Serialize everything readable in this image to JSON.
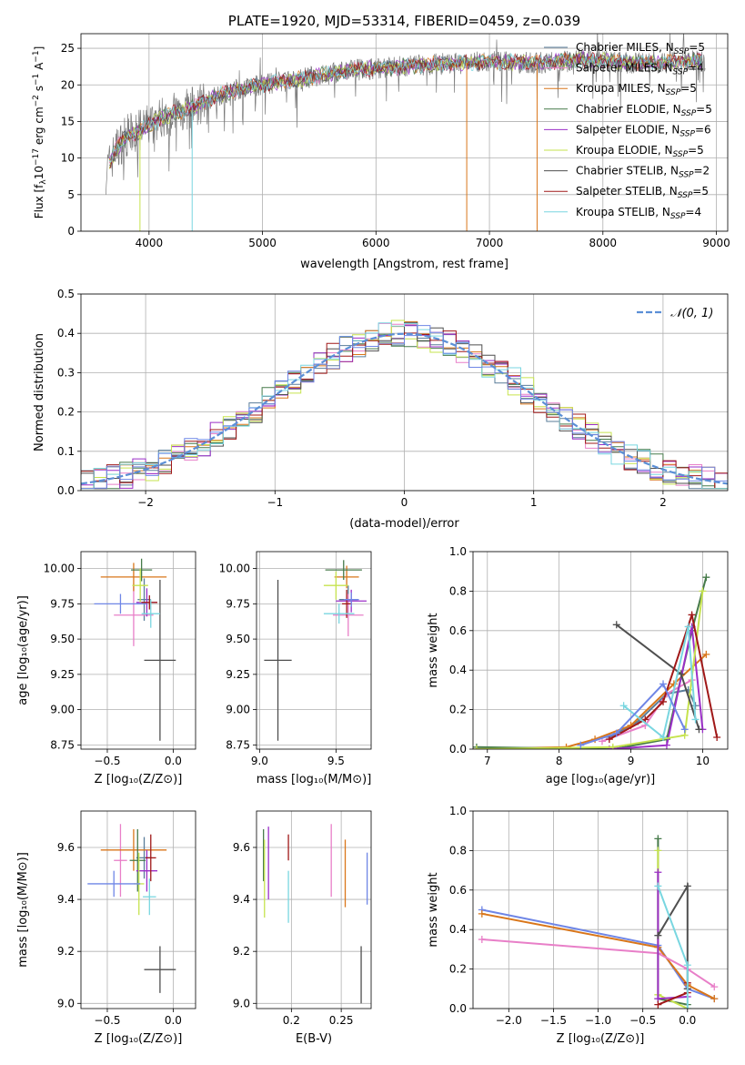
{
  "colors": {
    "Chabrier MILES": "#5a7d9a",
    "Salpeter MILES": "#e87fc8",
    "Kroupa MILES": "#d9761a",
    "Chabrier ELODIE": "#467a4a",
    "Salpeter ELODIE": "#9b2fc8",
    "Kroupa ELODIE": "#c6e34e",
    "Chabrier STELIB": "#4f4f4f",
    "Salpeter STELIB": "#a01818",
    "Kroupa STELIB": "#79d6e0",
    "Stelib spread": "#6f86e6",
    "gaussian": "#5b8fd6",
    "spectrum": "#7a7a7a"
  },
  "chart_data": [
    {
      "id": "spectrum",
      "type": "line",
      "title": "PLATE=1920, MJD=53314, FIBERID=0459, z=0.039",
      "xlabel": "wavelength [Angstrom, rest frame]",
      "ylabel_main": "Flux [f",
      "ylabel_sub": "λ",
      "ylabel_rest": "10",
      "ylabel_tail": "−17 erg cm−2 s−1 A−1]",
      "xlim": [
        3400,
        9100
      ],
      "ylim": [
        0,
        27
      ],
      "xticks": [
        4000,
        5000,
        6000,
        7000,
        8000,
        9000
      ],
      "yticks": [
        0,
        5,
        10,
        15,
        20,
        25
      ],
      "legend_position": "right",
      "legend": [
        {
          "name": "Chabrier MILES",
          "n": "5"
        },
        {
          "name": "Salpeter MILES",
          "n": "4"
        },
        {
          "name": "Kroupa MILES",
          "n": "5"
        },
        {
          "name": "Chabrier ELODIE",
          "n": "5"
        },
        {
          "name": "Salpeter ELODIE",
          "n": "6"
        },
        {
          "name": "Kroupa ELODIE",
          "n": "5"
        },
        {
          "name": "Chabrier STELIB",
          "n": "2"
        },
        {
          "name": "Salpeter STELIB",
          "n": "5"
        },
        {
          "name": "Kroupa STELIB",
          "n": "4"
        }
      ],
      "legend_prefix": "N",
      "legend_sub": "SSP",
      "continuum": [
        [
          3620,
          8
        ],
        [
          3700,
          11
        ],
        [
          3800,
          13
        ],
        [
          3900,
          13.5
        ],
        [
          4000,
          14.5
        ],
        [
          4100,
          15.5
        ],
        [
          4200,
          16
        ],
        [
          4400,
          17
        ],
        [
          4600,
          18.5
        ],
        [
          4800,
          19.5
        ],
        [
          5000,
          20
        ],
        [
          5200,
          20.5
        ],
        [
          5400,
          21
        ],
        [
          5600,
          21.5
        ],
        [
          5800,
          22
        ],
        [
          6000,
          22.3
        ],
        [
          6200,
          22.5
        ],
        [
          6500,
          22.8
        ],
        [
          6800,
          23
        ],
        [
          7000,
          23.2
        ],
        [
          7400,
          23
        ],
        [
          7800,
          23.5
        ],
        [
          8200,
          23
        ],
        [
          8500,
          23
        ],
        [
          8900,
          23.3
        ]
      ]
    },
    {
      "id": "residuals",
      "type": "histogram",
      "xlabel": "(data-model)/error",
      "ylabel": "Normed distribution",
      "xlim": [
        -2.5,
        2.5
      ],
      "ylim": [
        0,
        0.5
      ],
      "xticks": [
        -2,
        -1,
        0,
        1,
        2
      ],
      "yticks": [
        0.0,
        0.1,
        0.2,
        0.3,
        0.4,
        0.5
      ],
      "legend": "𝒩(0, 1)",
      "legend_position": "top-right",
      "bin_width": 0.1
    },
    {
      "id": "age_vs_Z",
      "type": "scatter",
      "xlabel": "Z [log₁₀(Z/Z⊙)]",
      "ylabel": "age  [log₁₀(age/yr)]",
      "xlim": [
        -0.7,
        0.17
      ],
      "ylim": [
        8.72,
        10.12
      ],
      "xticks": [
        -0.5,
        0.0
      ],
      "yticks": [
        8.75,
        9.0,
        9.25,
        9.5,
        9.75,
        10.0
      ],
      "points": [
        {
          "model": "Chabrier MILES",
          "x": -0.22,
          "xerr": 0.05,
          "y": 9.78,
          "yerr": 0.15
        },
        {
          "model": "Salpeter MILES",
          "x": -0.3,
          "xerr": 0.15,
          "y": 9.67,
          "yerr": 0.22
        },
        {
          "model": "Kroupa MILES",
          "x": -0.3,
          "xerr": 0.25,
          "y": 9.94,
          "yerr": 0.1
        },
        {
          "model": "Chabrier ELODIE",
          "x": -0.24,
          "xerr": 0.08,
          "y": 9.99,
          "yerr": 0.08
        },
        {
          "model": "Salpeter ELODIE",
          "x": -0.2,
          "xerr": 0.08,
          "y": 9.76,
          "yerr": 0.1
        },
        {
          "model": "Kroupa ELODIE",
          "x": -0.25,
          "xerr": 0.06,
          "y": 9.88,
          "yerr": 0.12
        },
        {
          "model": "Chabrier STELIB",
          "x": -0.1,
          "xerr": 0.12,
          "y": 9.35,
          "yerr": 0.57
        },
        {
          "model": "Salpeter STELIB",
          "x": -0.18,
          "xerr": 0.06,
          "y": 9.76,
          "yerr": 0.05
        },
        {
          "model": "Kroupa STELIB",
          "x": -0.17,
          "xerr": 0.07,
          "y": 9.68,
          "yerr": 0.1
        },
        {
          "model": "Stelib spread",
          "x": -0.4,
          "xerr": 0.2,
          "y": 9.75,
          "yerr": 0.07
        }
      ]
    },
    {
      "id": "age_vs_mass",
      "type": "scatter",
      "xlabel": "mass [log₁₀(M/M⊙)]",
      "ylabel": "",
      "xlim": [
        8.98,
        9.73
      ],
      "ylim": [
        8.72,
        10.12
      ],
      "xticks": [
        9.0,
        9.5
      ],
      "yticks": [
        8.75,
        9.0,
        9.25,
        9.5,
        9.75,
        10.0
      ],
      "points": [
        {
          "model": "Chabrier MILES",
          "x": 9.58,
          "xerr": 0.06,
          "y": 9.78,
          "yerr": 0.1
        },
        {
          "model": "Salpeter MILES",
          "x": 9.58,
          "xerr": 0.1,
          "y": 9.67,
          "yerr": 0.15
        },
        {
          "model": "Kroupa MILES",
          "x": 9.57,
          "xerr": 0.08,
          "y": 9.94,
          "yerr": 0.08
        },
        {
          "model": "Chabrier ELODIE",
          "x": 9.55,
          "xerr": 0.12,
          "y": 9.99,
          "yerr": 0.07
        },
        {
          "model": "Salpeter ELODIE",
          "x": 9.6,
          "xerr": 0.1,
          "y": 9.77,
          "yerr": 0.08
        },
        {
          "model": "Kroupa ELODIE",
          "x": 9.5,
          "xerr": 0.08,
          "y": 9.88,
          "yerr": 0.1
        },
        {
          "model": "Chabrier STELIB",
          "x": 9.12,
          "xerr": 0.09,
          "y": 9.35,
          "yerr": 0.57
        },
        {
          "model": "Salpeter STELIB",
          "x": 9.57,
          "xerr": 0.03,
          "y": 9.75,
          "yerr": 0.1
        },
        {
          "model": "Kroupa STELIB",
          "x": 9.52,
          "xerr": 0.1,
          "y": 9.68,
          "yerr": 0.07
        },
        {
          "model": "Stelib spread",
          "x": 9.6,
          "xerr": 0.05,
          "y": 9.78,
          "yerr": 0.05
        }
      ]
    },
    {
      "id": "weight_vs_age",
      "type": "line",
      "xlabel": "age  [log₁₀(age/yr)]",
      "ylabel": "mass weight",
      "xlim": [
        6.8,
        10.35
      ],
      "ylim": [
        0,
        1.0
      ],
      "xticks": [
        7,
        8,
        9,
        10
      ],
      "yticks": [
        0.0,
        0.2,
        0.4,
        0.6,
        0.8,
        1.0
      ],
      "series": [
        {
          "model": "Chabrier MILES",
          "x": [
            8.7,
            9.1,
            9.5,
            9.8,
            9.9
          ],
          "y": [
            0.06,
            0.14,
            0.28,
            0.3,
            0.22
          ]
        },
        {
          "model": "Salpeter MILES",
          "x": [
            8.6,
            9.2,
            9.5,
            9.85
          ],
          "y": [
            0.04,
            0.12,
            0.28,
            0.35
          ]
        },
        {
          "model": "Kroupa MILES",
          "x": [
            6.85,
            8.1,
            8.5,
            9.0,
            9.6,
            10.05
          ],
          "y": [
            0.0,
            0.01,
            0.05,
            0.12,
            0.33,
            0.48
          ]
        },
        {
          "model": "Chabrier ELODIE",
          "x": [
            6.85,
            8.75,
            9.5,
            9.85,
            10.05
          ],
          "y": [
            0.01,
            0.0,
            0.05,
            0.6,
            0.87
          ]
        },
        {
          "model": "Salpeter ELODIE",
          "x": [
            8.7,
            9.5,
            9.85,
            10.0
          ],
          "y": [
            0.0,
            0.02,
            0.62,
            0.1
          ]
        },
        {
          "model": "Kroupa ELODIE",
          "x": [
            6.85,
            8.75,
            9.75,
            10.0
          ],
          "y": [
            0.0,
            0.01,
            0.07,
            0.8
          ]
        },
        {
          "model": "Chabrier STELIB",
          "x": [
            8.8,
            9.7,
            9.95
          ],
          "y": [
            0.63,
            0.38,
            0.1
          ]
        },
        {
          "model": "Salpeter STELIB",
          "x": [
            8.7,
            9.2,
            9.45,
            9.85,
            10.2
          ],
          "y": [
            0.05,
            0.15,
            0.24,
            0.68,
            0.06
          ]
        },
        {
          "model": "Kroupa STELIB",
          "x": [
            8.9,
            9.45,
            9.8,
            9.9
          ],
          "y": [
            0.22,
            0.06,
            0.62,
            0.15
          ]
        },
        {
          "model": "Stelib spread",
          "x": [
            8.3,
            8.8,
            9.45,
            9.75
          ],
          "y": [
            0.02,
            0.08,
            0.33,
            0.1
          ]
        }
      ]
    },
    {
      "id": "mass_vs_Z",
      "type": "scatter",
      "xlabel": "Z [log₁₀(Z/Z⊙)]",
      "ylabel": "mass [log₁₀(M/M⊙)]",
      "xlim": [
        -0.7,
        0.17
      ],
      "ylim": [
        8.98,
        9.74
      ],
      "xticks": [
        -0.5,
        0.0
      ],
      "yticks": [
        9.0,
        9.2,
        9.4,
        9.6
      ],
      "points": [
        {
          "model": "Chabrier MILES",
          "x": -0.22,
          "xerr": 0.06,
          "y": 9.56,
          "yerr": 0.08
        },
        {
          "model": "Salpeter MILES",
          "x": -0.4,
          "xerr": 0.05,
          "y": 9.55,
          "yerr": 0.14
        },
        {
          "model": "Kroupa MILES",
          "x": -0.3,
          "xerr": 0.25,
          "y": 9.59,
          "yerr": 0.08
        },
        {
          "model": "Chabrier ELODIE",
          "x": -0.27,
          "xerr": 0.06,
          "y": 9.55,
          "yerr": 0.12
        },
        {
          "model": "Salpeter ELODIE",
          "x": -0.2,
          "xerr": 0.08,
          "y": 9.51,
          "yerr": 0.08
        },
        {
          "model": "Kroupa ELODIE",
          "x": -0.26,
          "xerr": 0.04,
          "y": 9.46,
          "yerr": 0.12
        },
        {
          "model": "Chabrier STELIB",
          "x": -0.1,
          "xerr": 0.12,
          "y": 9.13,
          "yerr": 0.09
        },
        {
          "model": "Salpeter STELIB",
          "x": -0.17,
          "xerr": 0.04,
          "y": 9.56,
          "yerr": 0.09
        },
        {
          "model": "Kroupa STELIB",
          "x": -0.18,
          "xerr": 0.05,
          "y": 9.41,
          "yerr": 0.07
        },
        {
          "model": "Stelib spread",
          "x": -0.45,
          "xerr": 0.2,
          "y": 9.46,
          "yerr": 0.05
        }
      ]
    },
    {
      "id": "mass_vs_EBV",
      "type": "scatter",
      "xlabel": "E(B-V)",
      "ylabel": "",
      "xlim": [
        0.165,
        0.28
      ],
      "ylim": [
        8.98,
        9.74
      ],
      "xticks": [
        0.2,
        0.25
      ],
      "yticks": [
        9.0,
        9.2,
        9.4,
        9.6
      ],
      "points": [
        {
          "model": "Chabrier ELODIE",
          "x": 0.172,
          "xerr": 0,
          "y": 9.57,
          "yerr": 0.1
        },
        {
          "model": "Kroupa ELODIE",
          "x": 0.173,
          "xerr": 0,
          "y": 9.48,
          "yerr": 0.15
        },
        {
          "model": "Salpeter ELODIE",
          "x": 0.177,
          "xerr": 0,
          "y": 9.54,
          "yerr": 0.14
        },
        {
          "model": "Kroupa STELIB",
          "x": 0.197,
          "xerr": 0,
          "y": 9.41,
          "yerr": 0.1
        },
        {
          "model": "Salpeter STELIB",
          "x": 0.197,
          "xerr": 0,
          "y": 9.6,
          "yerr": 0.05
        },
        {
          "model": "Salpeter MILES",
          "x": 0.24,
          "xerr": 0,
          "y": 9.55,
          "yerr": 0.14
        },
        {
          "model": "Kroupa MILES",
          "x": 0.254,
          "xerr": 0,
          "y": 9.5,
          "yerr": 0.13
        },
        {
          "model": "Chabrier STELIB",
          "x": 0.27,
          "xerr": 0,
          "y": 9.11,
          "yerr": 0.11
        },
        {
          "model": "Stelib spread",
          "x": 0.276,
          "xerr": 0,
          "y": 9.48,
          "yerr": 0.1
        }
      ]
    },
    {
      "id": "weight_vs_Z",
      "type": "line",
      "xlabel": "Z [log₁₀(Z/Z⊙)]",
      "ylabel": "mass weight",
      "xlim": [
        -2.4,
        0.45
      ],
      "ylim": [
        0,
        1.0
      ],
      "xticks": [
        -2.0,
        -1.5,
        -1.0,
        -0.5,
        0.0
      ],
      "yticks": [
        0.0,
        0.2,
        0.4,
        0.6,
        0.8,
        1.0
      ],
      "series": [
        {
          "model": "Stelib spread",
          "x": [
            -2.3,
            -0.33,
            0.0,
            0.3
          ],
          "y": [
            0.5,
            0.32,
            0.1,
            0.05
          ]
        },
        {
          "model": "Kroupa MILES",
          "x": [
            -2.3,
            -0.33,
            0.0,
            0.3
          ],
          "y": [
            0.48,
            0.31,
            0.12,
            0.05
          ]
        },
        {
          "model": "Salpeter MILES",
          "x": [
            -2.3,
            -0.33,
            0.0,
            0.3
          ],
          "y": [
            0.35,
            0.28,
            0.2,
            0.11
          ]
        },
        {
          "model": "Chabrier ELODIE",
          "x": [
            -0.33,
            -0.33,
            0.0
          ],
          "y": [
            0.86,
            0.05,
            0.02
          ]
        },
        {
          "model": "Kroupa ELODIE",
          "x": [
            -0.33,
            -0.33,
            0.0
          ],
          "y": [
            0.8,
            0.07,
            0.0
          ]
        },
        {
          "model": "Salpeter ELODIE",
          "x": [
            -0.33,
            -0.33,
            0.0
          ],
          "y": [
            0.69,
            0.05,
            0.06
          ]
        },
        {
          "model": "Chabrier STELIB",
          "x": [
            -0.33,
            0.0,
            0.0
          ],
          "y": [
            0.37,
            0.62,
            0.1
          ]
        },
        {
          "model": "Salpeter STELIB",
          "x": [
            -0.33,
            0.0,
            0.0
          ],
          "y": [
            0.02,
            0.08,
            0.13
          ]
        },
        {
          "model": "Kroupa STELIB",
          "x": [
            -0.33,
            0.0,
            0.0
          ],
          "y": [
            0.62,
            0.22,
            0.0
          ]
        }
      ]
    }
  ]
}
